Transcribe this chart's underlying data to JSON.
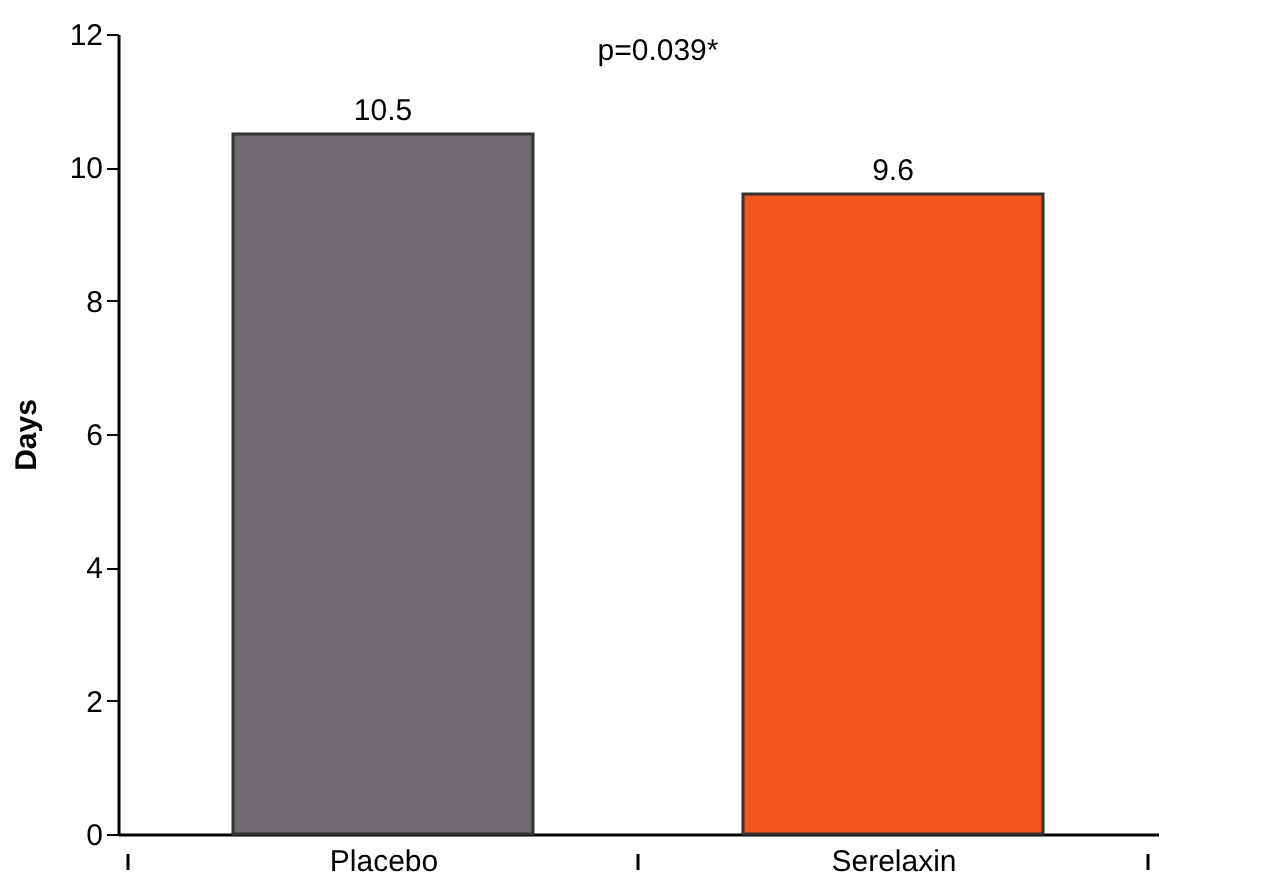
{
  "chart_data": {
    "type": "bar",
    "ylabel": "Days",
    "categories": [
      "Placebo",
      "Serelaxin"
    ],
    "values": [
      10.5,
      9.6
    ],
    "colors": [
      "#6e6a6f",
      "#f0561e"
    ],
    "ylim": [
      0,
      12
    ],
    "yticks": [
      0,
      2,
      4,
      6,
      8,
      10,
      12
    ],
    "data_labels": true,
    "grid": false,
    "annotations": [
      "p=0.039*"
    ]
  }
}
